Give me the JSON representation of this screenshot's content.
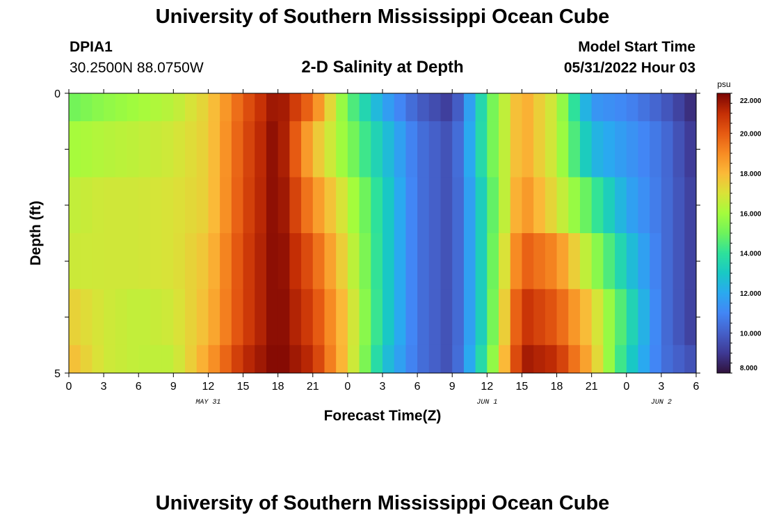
{
  "header": {
    "title": "University of Southern Mississippi Ocean Cube",
    "station_id": "DPIA1",
    "coords": "30.2500N  88.0750W",
    "chart_title": "2-D Salinity at Depth",
    "model_label": "Model Start Time",
    "model_time": "05/31/2022 Hour 03"
  },
  "footer": {
    "title": "University of Southern Mississippi Ocean Cube"
  },
  "chart_data": {
    "type": "heatmap",
    "title": "2-D Salinity at Depth",
    "xlabel": "Forecast Time(Z)",
    "ylabel": "Depth (ft)",
    "x_tick_labels": [
      "0",
      "3",
      "6",
      "9",
      "12",
      "15",
      "18",
      "21",
      "0",
      "3",
      "6",
      "9",
      "12",
      "15",
      "18",
      "21",
      "0",
      "3",
      "6"
    ],
    "date_labels": [
      {
        "label": "MAY 31",
        "hour": 12
      },
      {
        "label": "JUN 1",
        "hour": 36
      },
      {
        "label": "JUN 2",
        "hour": 51
      }
    ],
    "y_tick_labels": [
      "0",
      "5"
    ],
    "ylim": [
      0,
      5
    ],
    "xlim_hours": [
      0,
      54
    ],
    "colorbar": {
      "unit": "psu",
      "min": 8.0,
      "max": 22.0,
      "tick_labels": [
        "22.000",
        "20.000",
        "18.000",
        "16.000",
        "14.000",
        "12.000",
        "10.000",
        "8.000"
      ],
      "tick_values": [
        22,
        20,
        18,
        16,
        14,
        12,
        10,
        8
      ]
    },
    "depth_rows": [
      "0-0.5 ft",
      "0.5-1.5 ft",
      "1.5-2.5 ft",
      "2.5-3.5 ft",
      "3.5-4.5 ft",
      "4.5-5 ft"
    ],
    "hours": [
      0,
      3,
      6,
      9,
      12,
      15,
      18,
      21,
      24,
      27,
      30,
      33,
      36,
      39,
      42,
      45,
      48,
      51,
      54
    ],
    "salinity_psu": [
      [
        15.0,
        15.6,
        16.0,
        16.4,
        17.5,
        20.0,
        21.8,
        19.5,
        15.0,
        12.0,
        10.0,
        9.0,
        14.5,
        18.5,
        16.5,
        11.5,
        11.0,
        10.0,
        8.5
      ],
      [
        16.0,
        16.3,
        16.5,
        16.8,
        17.5,
        20.2,
        22.0,
        18.0,
        15.5,
        13.0,
        10.5,
        9.5,
        14.5,
        18.5,
        16.5,
        12.5,
        11.5,
        10.5,
        8.8
      ],
      [
        16.5,
        16.8,
        16.8,
        17.0,
        17.5,
        20.3,
        22.0,
        19.0,
        16.5,
        13.5,
        10.5,
        9.5,
        14.0,
        19.0,
        17.0,
        14.5,
        12.0,
        10.5,
        9.0
      ],
      [
        16.7,
        16.8,
        16.8,
        17.0,
        17.8,
        20.5,
        22.0,
        20.0,
        17.0,
        13.5,
        10.5,
        9.5,
        14.0,
        20.0,
        19.0,
        16.0,
        13.0,
        10.5,
        9.0
      ],
      [
        17.5,
        16.8,
        16.5,
        16.8,
        18.0,
        20.5,
        22.0,
        20.5,
        17.5,
        13.5,
        10.5,
        9.5,
        14.0,
        21.0,
        20.0,
        17.5,
        14.0,
        10.5,
        9.0
      ],
      [
        18.0,
        16.8,
        16.5,
        16.5,
        18.5,
        21.0,
        22.0,
        21.0,
        17.5,
        13.0,
        10.5,
        9.5,
        14.5,
        21.5,
        21.0,
        18.0,
        13.5,
        10.5,
        9.5
      ]
    ],
    "colormap": [
      [
        8.0,
        "#30123b"
      ],
      [
        9.0,
        "#3e3994"
      ],
      [
        10.0,
        "#4560c9"
      ],
      [
        11.0,
        "#4286f5"
      ],
      [
        12.0,
        "#2aa9f0"
      ],
      [
        13.0,
        "#19c8c5"
      ],
      [
        14.0,
        "#2ee19b"
      ],
      [
        15.0,
        "#6ef35c"
      ],
      [
        16.0,
        "#a4fc3c"
      ],
      [
        17.0,
        "#dae238"
      ],
      [
        18.0,
        "#fbb938"
      ],
      [
        19.0,
        "#f78b23"
      ],
      [
        20.0,
        "#e65a12"
      ],
      [
        21.0,
        "#c42e05"
      ],
      [
        22.0,
        "#7a0403"
      ]
    ]
  }
}
